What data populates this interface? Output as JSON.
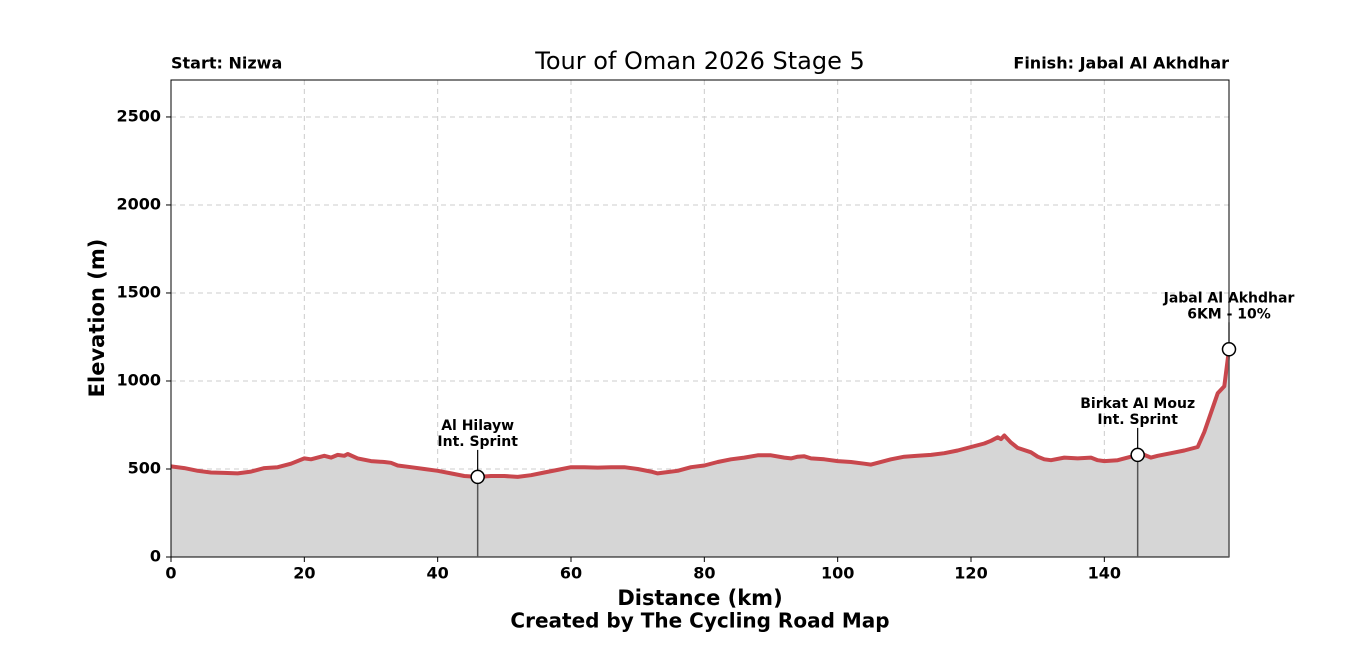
{
  "chart_data": {
    "type": "line",
    "title": "Tour of Oman 2026 Stage 5",
    "start_label": "Start: Nizwa",
    "finish_label": "Finish: Jabal Al Akhdhar",
    "xlabel": "Distance (km)",
    "ylabel": "Elevation (m)",
    "credit": "Created by The Cycling Road Map",
    "x": [
      0,
      2,
      4,
      6,
      8,
      10,
      12,
      14,
      16,
      18,
      20,
      21,
      23,
      24,
      25,
      26,
      26.5,
      28,
      30,
      32,
      33,
      34,
      36,
      38,
      40,
      42,
      44,
      46,
      48,
      50,
      52,
      54,
      56,
      58,
      60,
      62,
      64,
      66,
      68,
      70,
      72,
      73,
      74,
      76,
      78,
      80,
      82,
      84,
      86,
      88,
      90,
      92,
      93,
      94,
      95,
      96,
      98,
      100,
      102,
      104,
      105,
      106,
      108,
      110,
      112,
      114,
      116,
      118,
      120,
      122,
      123,
      124,
      124.5,
      125,
      126,
      127,
      129,
      130,
      131,
      132,
      134,
      136,
      138,
      139,
      140,
      142,
      144,
      145,
      146,
      147,
      148,
      150,
      152,
      154,
      155,
      156,
      157,
      158,
      158.7
    ],
    "values": [
      515,
      505,
      490,
      480,
      478,
      475,
      485,
      505,
      510,
      530,
      560,
      555,
      575,
      565,
      580,
      575,
      585,
      560,
      545,
      540,
      535,
      520,
      510,
      500,
      490,
      475,
      460,
      455,
      460,
      460,
      455,
      465,
      480,
      495,
      510,
      510,
      508,
      510,
      510,
      500,
      485,
      475,
      480,
      490,
      510,
      520,
      540,
      555,
      565,
      578,
      578,
      565,
      560,
      570,
      572,
      560,
      555,
      545,
      540,
      530,
      525,
      535,
      555,
      570,
      575,
      580,
      590,
      605,
      625,
      645,
      660,
      680,
      670,
      690,
      650,
      620,
      595,
      570,
      555,
      550,
      565,
      560,
      565,
      550,
      545,
      550,
      570,
      580,
      580,
      565,
      575,
      590,
      605,
      625,
      710,
      820,
      930,
      970,
      1180
    ],
    "line_color": "#c8474d",
    "fill_color": "#d6d6d6",
    "xlim": [
      0,
      158.7
    ],
    "ylim": [
      0,
      2710
    ],
    "xticks": [
      0,
      20,
      40,
      60,
      80,
      100,
      120,
      140
    ],
    "yticks": [
      0,
      500,
      1000,
      1500,
      2000,
      2500
    ],
    "grid": true,
    "annotations": [
      {
        "x": 46,
        "y": 455,
        "text": [
          "Al Hilayw",
          "Int. Sprint"
        ]
      },
      {
        "x": 145,
        "y": 580,
        "text": [
          "Birkat Al Mouz",
          "Int. Sprint"
        ]
      },
      {
        "x": 158.7,
        "y": 1180,
        "text": [
          "Jabal Al Akhdhar",
          "6KM - 10%"
        ]
      }
    ]
  }
}
